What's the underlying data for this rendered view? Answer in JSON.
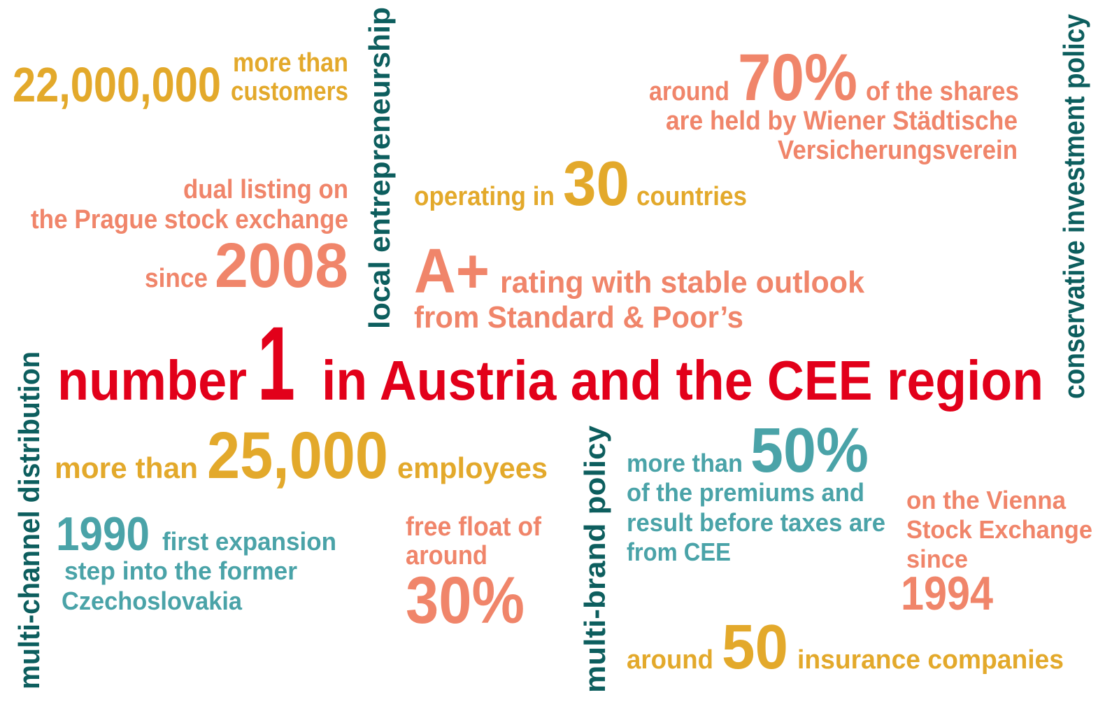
{
  "customers": {
    "value": "22,000,000",
    "lines": [
      "more than",
      "customers"
    ]
  },
  "shares": {
    "prefix": "around",
    "value": "70%",
    "suffix": "of the shares",
    "lines": [
      "are held by Wiener Städtische",
      "Versicherungsverein"
    ]
  },
  "prague": {
    "lines": [
      "dual listing on",
      "the Prague stock exchange"
    ],
    "prefix": "since",
    "value": "2008"
  },
  "countries": {
    "prefix": "operating in",
    "value": "30",
    "suffix": "countries"
  },
  "rating": {
    "value": "A+",
    "suffix": "rating with stable outlook",
    "lines": [
      "from Standard & Poor’s"
    ]
  },
  "headline": {
    "prefix": "number",
    "value": "1",
    "suffix": "in Austria and the CEE region"
  },
  "employees": {
    "prefix": "more than",
    "value": "25,000",
    "suffix": "employees"
  },
  "expansion": {
    "value": "1990",
    "suffix": "first expansion",
    "lines": [
      "step into the former",
      "Czechoslovakia"
    ]
  },
  "free_float": {
    "lines": [
      "free float of",
      "around"
    ],
    "value": "30%"
  },
  "premiums": {
    "prefix": "more than",
    "value": "50%",
    "lines": [
      "of the premiums and",
      "result before taxes are",
      "from CEE"
    ]
  },
  "vienna": {
    "lines": [
      "on the Vienna",
      "Stock Exchange",
      "since"
    ],
    "value": "1994"
  },
  "companies": {
    "prefix": "around",
    "value": "50",
    "suffix": "insurance companies"
  },
  "vertical": [
    "local entrepreneurship",
    "conservative investment policy",
    "multi-channel distribution",
    "multi-brand policy"
  ]
}
